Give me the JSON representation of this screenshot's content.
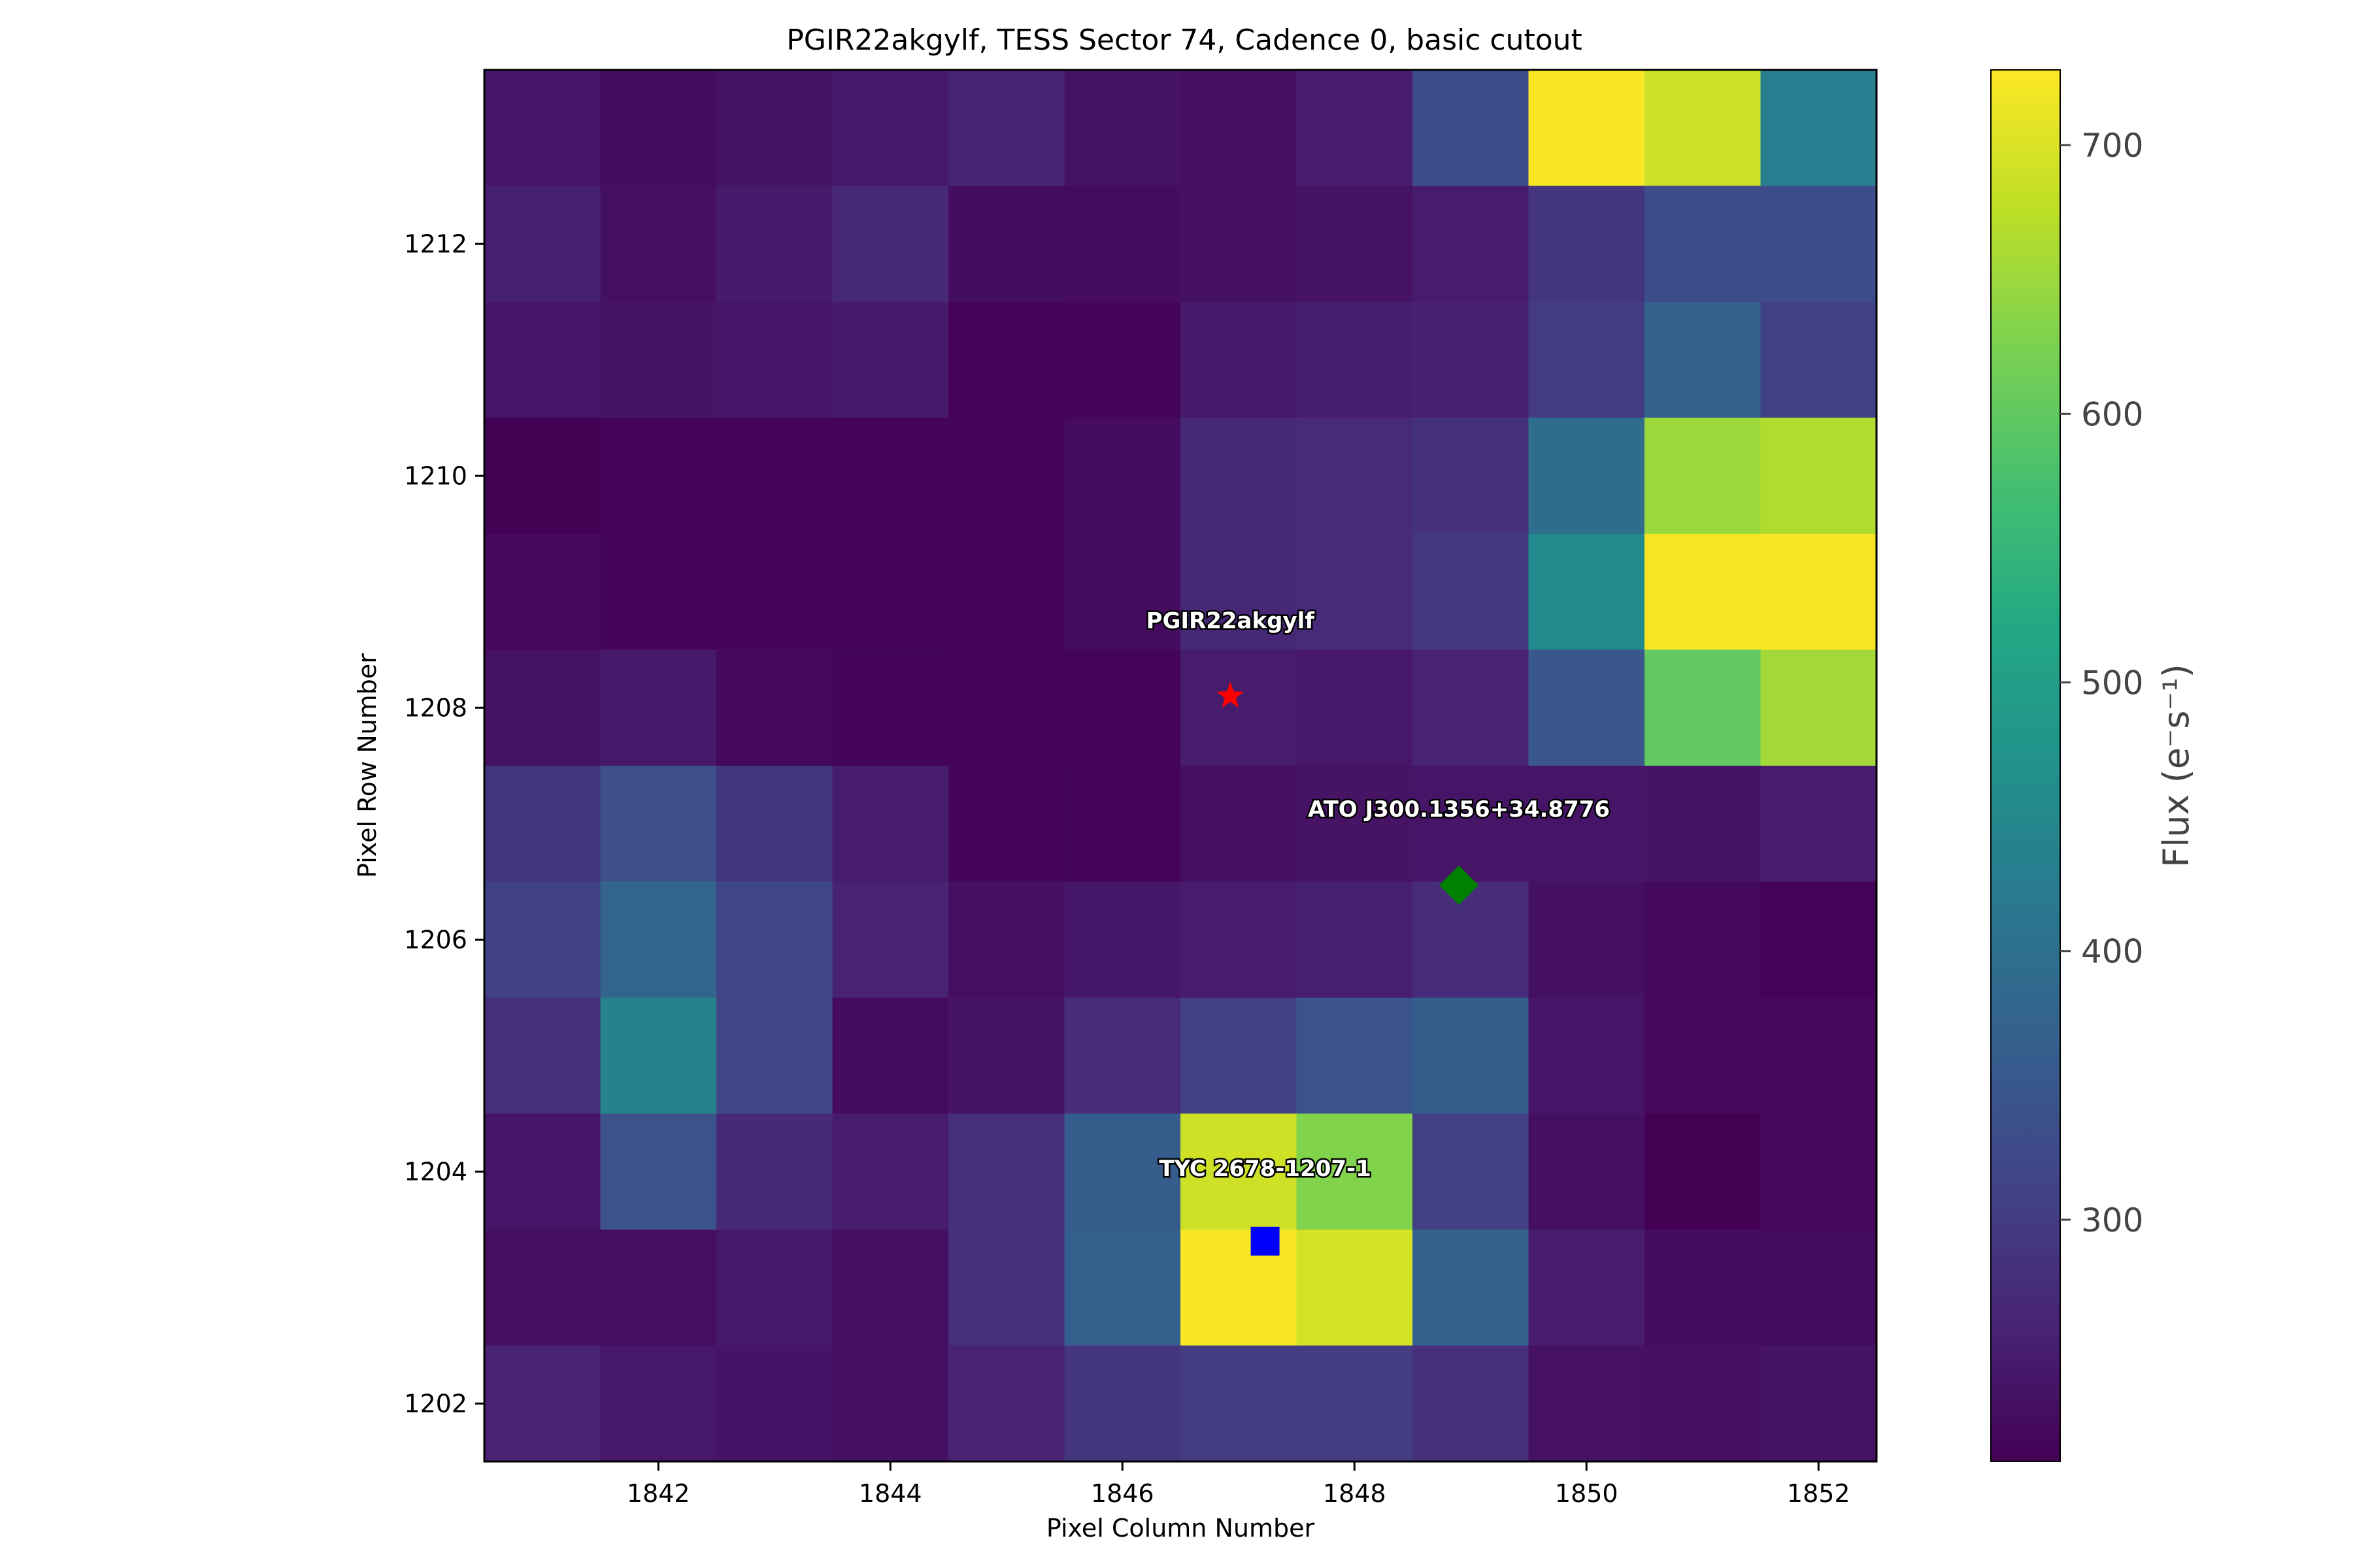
{
  "chart_data": {
    "type": "heatmap",
    "title": "PGIR22akgylf, TESS Sector 74, Cadence 0, basic cutout",
    "xlabel": "Pixel Column Number",
    "ylabel": "Pixel Row Number",
    "x": [
      1841,
      1842,
      1843,
      1844,
      1845,
      1846,
      1847,
      1848,
      1849,
      1850,
      1851,
      1852
    ],
    "y": [
      1213,
      1212,
      1211,
      1210,
      1209,
      1208,
      1207,
      1206,
      1205,
      1204,
      1203,
      1202
    ],
    "xlim": [
      1840.5,
      1852.5
    ],
    "ylim": [
      1201.5,
      1213.5
    ],
    "xticks": [
      1842,
      1844,
      1846,
      1848,
      1850,
      1852
    ],
    "yticks": [
      1202,
      1204,
      1206,
      1208,
      1210,
      1212
    ],
    "values": [
      [
        240,
        228,
        237,
        245,
        262,
        235,
        230,
        250,
        330,
        725,
        690,
        430
      ],
      [
        255,
        232,
        248,
        268,
        228,
        225,
        232,
        236,
        250,
        290,
        330,
        330
      ],
      [
        240,
        236,
        240,
        248,
        213,
        218,
        245,
        252,
        256,
        300,
        370,
        310
      ],
      [
        212,
        216,
        216,
        216,
        216,
        225,
        270,
        272,
        282,
        395,
        650,
        665
      ],
      [
        220,
        216,
        216,
        216,
        216,
        225,
        268,
        272,
        296,
        455,
        722,
        722
      ],
      [
        235,
        245,
        222,
        218,
        216,
        216,
        250,
        243,
        260,
        350,
        600,
        655
      ],
      [
        290,
        335,
        290,
        250,
        218,
        216,
        232,
        236,
        240,
        240,
        236,
        250
      ],
      [
        310,
        375,
        320,
        260,
        230,
        242,
        250,
        255,
        275,
        232,
        222,
        213
      ],
      [
        280,
        440,
        320,
        225,
        236,
        275,
        308,
        345,
        360,
        240,
        220,
        220
      ],
      [
        240,
        340,
        270,
        250,
        280,
        360,
        690,
        630,
        305,
        232,
        210,
        220
      ],
      [
        232,
        230,
        244,
        232,
        280,
        365,
        725,
        695,
        370,
        250,
        225,
        225
      ],
      [
        260,
        244,
        238,
        232,
        260,
        290,
        300,
        300,
        280,
        234,
        230,
        236
      ]
    ],
    "colorbar": {
      "label": "Flux",
      "unit": "(e⁻s⁻¹)",
      "range": [
        210,
        728
      ],
      "ticks": [
        300,
        400,
        500,
        600,
        700
      ],
      "colormap": "viridis"
    },
    "markers": [
      {
        "name": "PGIR22akgylf",
        "x": 1846.93,
        "y": 1208.1,
        "shape": "star",
        "color": "#ff0000"
      },
      {
        "name": "ATO J300.1356+34.8776",
        "x": 1848.9,
        "y": 1206.47,
        "shape": "diamond",
        "color": "#008000"
      },
      {
        "name": "TYC 2678-1207-1",
        "x": 1847.23,
        "y": 1203.4,
        "shape": "square",
        "color": "#0000ff"
      }
    ]
  }
}
